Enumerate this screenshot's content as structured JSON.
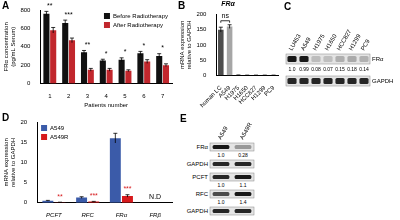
{
  "chart_data": [
    {
      "panel": "A",
      "type": "bar",
      "categories": [
        "1",
        "2",
        "3",
        "4",
        "5",
        "6",
        "7"
      ],
      "x_label": "Patients number",
      "y_label": [
        "FRα concentration",
        "(pg/mL Serum)"
      ],
      "ylim": [
        0,
        800
      ],
      "yticks": [
        0,
        200,
        400,
        600,
        800
      ],
      "legend": "top-right",
      "series": [
        {
          "name": "Before Radiotherapy",
          "color": "#111111",
          "values": [
            760,
            660,
            340,
            250,
            260,
            330,
            300
          ],
          "errors": [
            25,
            30,
            20,
            15,
            20,
            20,
            25
          ]
        },
        {
          "name": "After Radiotherapy",
          "color": "#c1272d",
          "values": [
            580,
            470,
            150,
            150,
            140,
            240,
            200
          ],
          "errors": [
            30,
            25,
            15,
            15,
            10,
            20,
            15
          ]
        }
      ],
      "annotations": [
        {
          "category": "1",
          "text": "**"
        },
        {
          "category": "2",
          "text": "***"
        },
        {
          "category": "3",
          "text": "**"
        },
        {
          "category": "4",
          "text": "*"
        },
        {
          "category": "5",
          "text": "*"
        },
        {
          "category": "6",
          "text": "*"
        },
        {
          "category": "7",
          "text": "*"
        }
      ]
    },
    {
      "panel": "B",
      "type": "bar",
      "title": "FRα",
      "categories": [
        "human LC",
        "A549",
        "H1975",
        "H1650",
        "HCC827",
        "H1299",
        "PC9"
      ],
      "y_label": [
        "mRNA expression",
        "relative to GAPDH"
      ],
      "ylim": [
        0,
        200
      ],
      "yticks": [
        0,
        50,
        100,
        150,
        200
      ],
      "values": [
        150,
        160,
        1,
        0.5,
        0.5,
        0.5,
        0.5
      ],
      "errors": [
        8,
        6,
        0.3,
        0.2,
        0.2,
        0.2,
        0.2
      ],
      "colors": [
        "#4d4d4d",
        "#a6a6a6",
        "#4d4d4d",
        "#4d4d4d",
        "#4d4d4d",
        "#4d4d4d",
        "#4d4d4d"
      ],
      "annotations": [
        {
          "categories": [
            "human LC",
            "A549"
          ],
          "text": "ns"
        }
      ]
    },
    {
      "panel": "D",
      "type": "bar",
      "categories": [
        "PCFT",
        "RFC",
        "FRα",
        "FRβ"
      ],
      "y_label": [
        "mRNA expression",
        "relative to GAPDH"
      ],
      "ylim": [
        0,
        20
      ],
      "yticks": [
        0,
        5,
        10,
        15,
        20
      ],
      "legend": "top-left",
      "series": [
        {
          "name": "A549",
          "color": "#3b5ba9",
          "values": [
            0.5,
            1.3,
            16,
            null
          ],
          "errors": [
            0.1,
            0.2,
            1.2,
            null
          ]
        },
        {
          "name": "A549R",
          "color": "#d7191c",
          "values": [
            0.1,
            0.3,
            1.7,
            null
          ],
          "errors": [
            0.05,
            0.05,
            0.3,
            null
          ]
        }
      ],
      "annotations": [
        {
          "category": "PCFT",
          "series": "A549R",
          "text": "**"
        },
        {
          "category": "RFC",
          "series": "A549R",
          "text": "***"
        },
        {
          "category": "FRα",
          "series": "A549R",
          "text": "***"
        },
        {
          "category": "FRβ",
          "text": "N.D"
        }
      ]
    }
  ],
  "blots": [
    {
      "panel": "C",
      "lanes": [
        "LU453",
        "A549",
        "H1975",
        "H1650",
        "HCC827",
        "H1299",
        "PC9"
      ],
      "rows": [
        {
          "name": "FRα",
          "quantification": [
            "1.0",
            "0.99",
            "0.08",
            "0.07",
            "0.15",
            "0.18",
            "0.14"
          ]
        },
        {
          "name": "GAPDH"
        }
      ]
    },
    {
      "panel": "E",
      "lanes": [
        "A549",
        "A549R"
      ],
      "rows": [
        {
          "name": "FRα",
          "quantification": [
            "1.0",
            "0.28"
          ]
        },
        {
          "name": "GAPDH"
        },
        {
          "name": "PCFT",
          "quantification": [
            "1.0",
            "1.1"
          ]
        },
        {
          "name": "RFC",
          "quantification": [
            "1.0",
            "1.4"
          ]
        },
        {
          "name": "GAPDH"
        }
      ]
    }
  ]
}
